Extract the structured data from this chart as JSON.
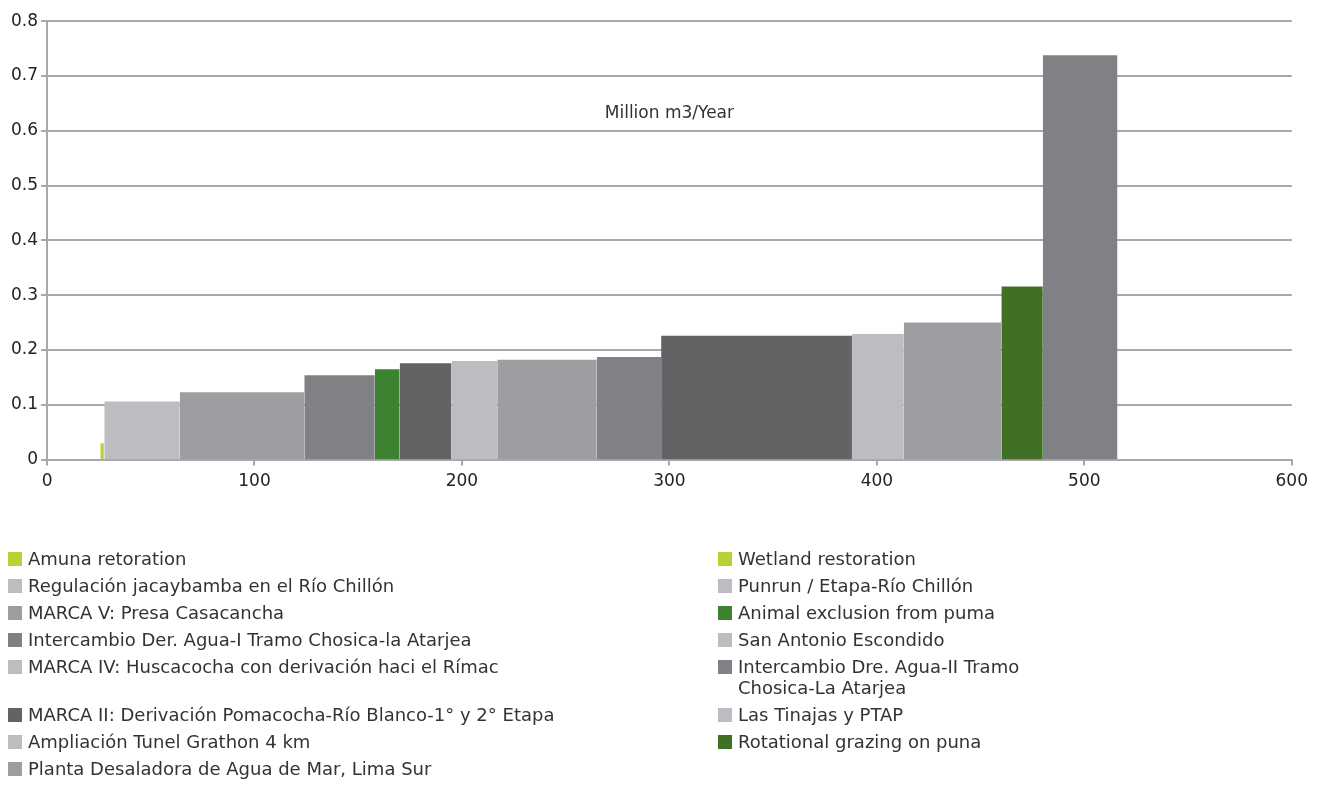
{
  "chart_data": {
    "type": "area",
    "ylabel": "Million m3/Year",
    "xlim": [
      0,
      600
    ],
    "xticks": [
      0,
      100,
      200,
      300,
      400,
      500,
      600
    ],
    "ylim": [
      0,
      0.8
    ],
    "yticks": [
      0,
      0.1,
      0.2,
      0.3,
      0.4,
      0.5,
      0.6,
      0.7,
      0.8
    ],
    "grid": "y",
    "legend": "bottom",
    "series": [
      {
        "name": "Amuna retoration",
        "color": "#b5d334",
        "x": [
          25.7,
          27.4
        ],
        "values": [
          0.03,
          0.03
        ]
      },
      {
        "name": "Wetland restoration",
        "color": "#b5d334"
      },
      {
        "name": "Regulación jacaybamba en el Río Chillón",
        "color": "#bcbdc1",
        "x": [
          27.6,
          64
        ],
        "values": [
          0.106,
          0.106
        ]
      },
      {
        "name": "Punrun / Etapa-Río Chillón",
        "color": "#bcbdc1"
      },
      {
        "name": "MARCA V: Presa Casacancha",
        "color": "#9d9ea2",
        "x": [
          64,
          124
        ],
        "values": [
          0.123,
          0.123
        ]
      },
      {
        "name": "Animal exclusion from puma",
        "color": "#3c8231",
        "x": [
          158,
          170
        ],
        "values": [
          0.165,
          0.165
        ]
      },
      {
        "name": "Intercambio Der. Agua-I Tramo Chosica-la Atarjea",
        "color": "#808184",
        "x": [
          124,
          158
        ],
        "values": [
          0.154,
          0.154
        ]
      },
      {
        "name": "San Antonio Escondido",
        "color": "#bcbdc1"
      },
      {
        "name": "MARCA IV: Huscacocha con derivación haci el Rímac",
        "color": "#bcbdc1",
        "x": [
          195,
          217
        ],
        "values": [
          0.18,
          0.18
        ]
      },
      {
        "name": "Intercambio Dre. Agua-II Tramo Chosica-La Atarjea",
        "color": "#808184",
        "x": [
          265,
          296
        ],
        "values": [
          0.187,
          0.187
        ]
      },
      {
        "name": "MARCA II: Derivación Pomacocha-Río Blanco-1° y 2° Etapa",
        "color": "#636365",
        "x": [
          170,
          195
        ],
        "values": [
          0.176,
          0.176
        ]
      },
      {
        "name": "Las Tinajas y PTAP",
        "color": "#bcbdc1",
        "x": [
          388,
          413
        ],
        "values": [
          0.229,
          0.229
        ]
      },
      {
        "name": "Ampliación Tunel Grathon 4 km",
        "color": "#bcbdc1"
      },
      {
        "name": "Rotational grazing on puna",
        "color": "#3f7024",
        "x": [
          460,
          480
        ],
        "values": [
          0.316,
          0.316
        ]
      },
      {
        "name": "Planta Desaladora de Agua de Mar, Lima Sur",
        "color": "#9d9ea2",
        "x": [
          217,
          265
        ],
        "values": [
          0.182,
          0.182
        ]
      },
      {
        "color": "#636365",
        "x": [
          296,
          388
        ],
        "values": [
          0.226,
          0.226
        ]
      },
      {
        "color": "#9d9ea2",
        "x": [
          413,
          460
        ],
        "values": [
          0.25,
          0.25
        ]
      },
      {
        "color": "#808184",
        "x": [
          480,
          516
        ],
        "values": [
          0.738,
          0.738
        ]
      }
    ]
  }
}
